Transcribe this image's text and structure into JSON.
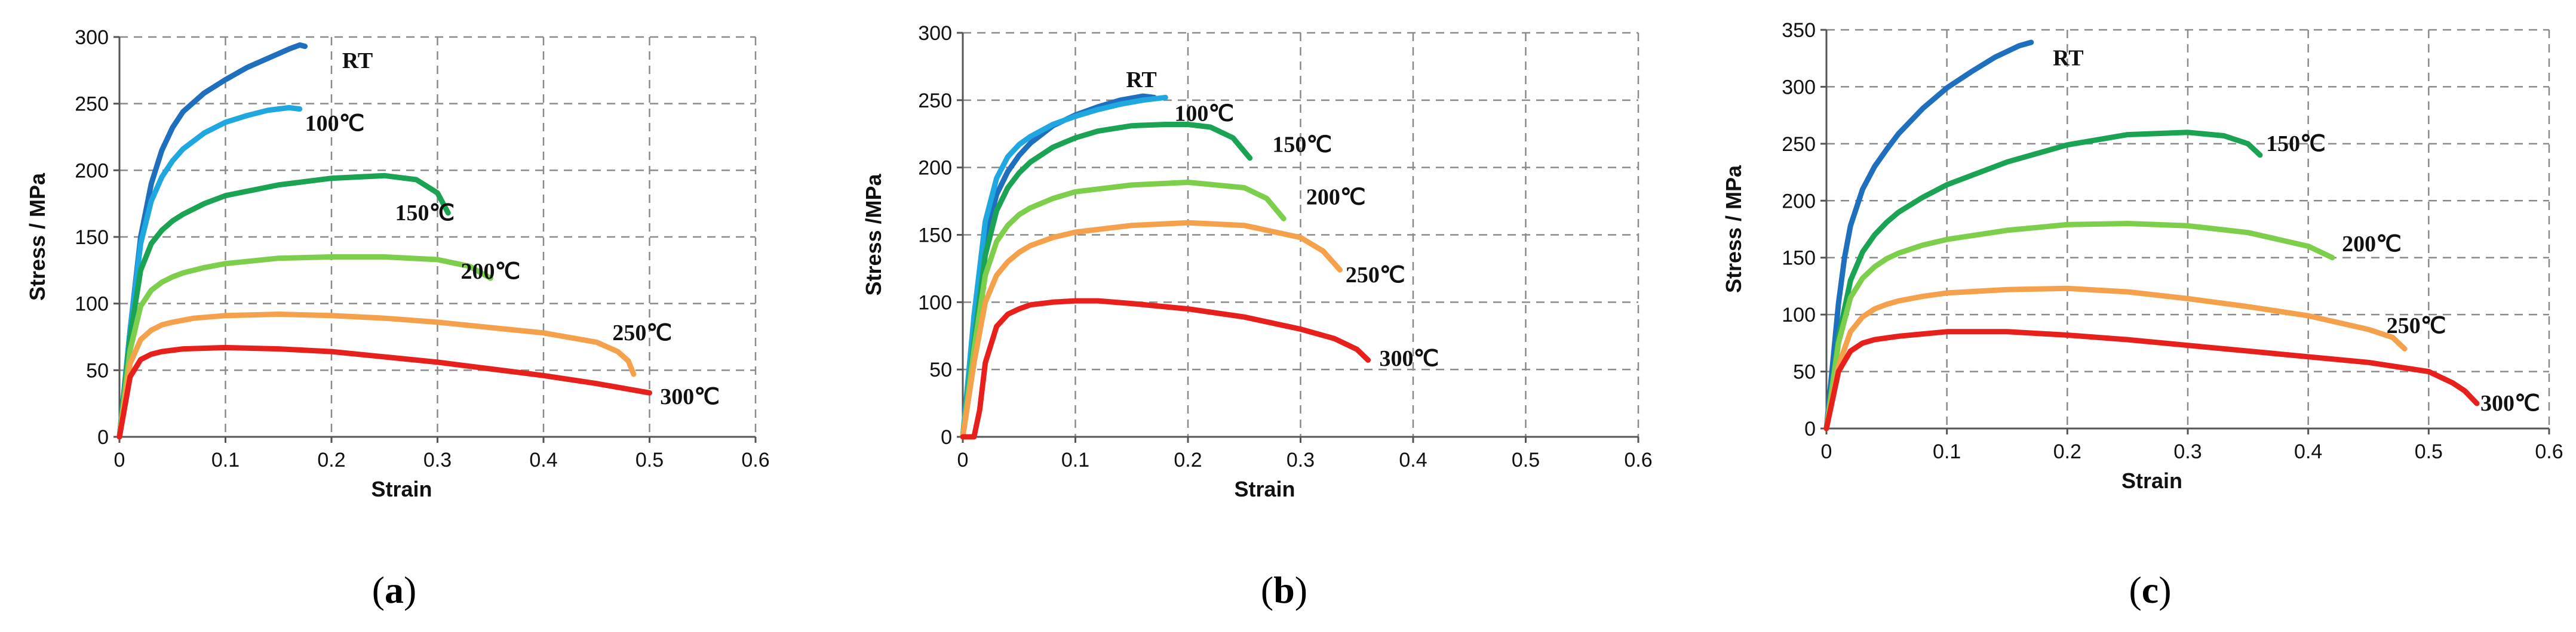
{
  "chart_data": [
    {
      "type": "line",
      "panel": "a",
      "caption": {
        "open": "(",
        "letter": "a",
        "close": ")"
      },
      "xlabel": "Strain",
      "ylabel": "Stress / MPa",
      "xlim": [
        0,
        0.6
      ],
      "ylim": [
        0,
        300
      ],
      "xticks": [
        0,
        0.1,
        0.2,
        0.3,
        0.4,
        0.5,
        0.6
      ],
      "yticks": [
        0,
        50,
        100,
        150,
        200,
        250,
        300
      ],
      "xtick_labels": [
        "0",
        "0.1",
        "0.2",
        "0.3",
        "0.4",
        "0.5",
        "0.6"
      ],
      "ytick_labels": [
        "0",
        "50",
        "100",
        "150",
        "200",
        "250",
        "300"
      ],
      "grid": true,
      "series": [
        {
          "name": "RT",
          "color": "#1f6fbf",
          "label_at": [
            0.21,
            282
          ],
          "x": [
            0,
            0.01,
            0.02,
            0.03,
            0.04,
            0.05,
            0.06,
            0.08,
            0.1,
            0.12,
            0.14,
            0.16,
            0.17,
            0.175
          ],
          "y": [
            0,
            80,
            150,
            190,
            215,
            232,
            244,
            258,
            268,
            277,
            284,
            291,
            294,
            293
          ]
        },
        {
          "name": "100℃",
          "color": "#1fa8e0",
          "label_at": [
            0.175,
            235
          ],
          "x": [
            0,
            0.01,
            0.02,
            0.03,
            0.04,
            0.05,
            0.06,
            0.08,
            0.1,
            0.12,
            0.14,
            0.16,
            0.17
          ],
          "y": [
            0,
            80,
            145,
            177,
            195,
            207,
            216,
            228,
            236,
            241,
            245,
            247,
            246
          ]
        },
        {
          "name": "150℃",
          "color": "#1aa352",
          "label_at": [
            0.26,
            168
          ],
          "x": [
            0,
            0.01,
            0.02,
            0.03,
            0.04,
            0.05,
            0.06,
            0.08,
            0.1,
            0.15,
            0.2,
            0.25,
            0.28,
            0.3,
            0.31
          ],
          "y": [
            0,
            75,
            125,
            145,
            155,
            162,
            167,
            175,
            181,
            189,
            194,
            196,
            193,
            183,
            168
          ]
        },
        {
          "name": "200℃",
          "color": "#7dce4b",
          "label_at": [
            0.322,
            124
          ],
          "x": [
            0,
            0.01,
            0.02,
            0.03,
            0.04,
            0.05,
            0.06,
            0.08,
            0.1,
            0.15,
            0.2,
            0.25,
            0.3,
            0.33,
            0.35
          ],
          "y": [
            0,
            65,
            98,
            110,
            116,
            120,
            123,
            127,
            130,
            134,
            135,
            135,
            133,
            128,
            119
          ]
        },
        {
          "name": "250℃",
          "color": "#f5a04b",
          "label_at": [
            0.465,
            78
          ],
          "x": [
            0,
            0.01,
            0.02,
            0.03,
            0.04,
            0.05,
            0.07,
            0.1,
            0.15,
            0.2,
            0.25,
            0.3,
            0.35,
            0.4,
            0.45,
            0.47,
            0.48,
            0.485
          ],
          "y": [
            0,
            55,
            73,
            80,
            84,
            86,
            89,
            91,
            92,
            91,
            89,
            86,
            82,
            78,
            71,
            64,
            57,
            47
          ]
        },
        {
          "name": "300℃",
          "color": "#e8201c",
          "label_at": [
            0.51,
            30
          ],
          "x": [
            0,
            0.01,
            0.02,
            0.03,
            0.04,
            0.06,
            0.1,
            0.15,
            0.2,
            0.25,
            0.3,
            0.35,
            0.4,
            0.45,
            0.5
          ],
          "y": [
            0,
            45,
            58,
            62,
            64,
            66,
            67,
            66,
            64,
            60,
            56,
            51,
            46,
            40,
            33
          ]
        }
      ]
    },
    {
      "type": "line",
      "panel": "b",
      "caption": {
        "open": "(",
        "letter": "b",
        "close": ")"
      },
      "xlabel": "Strain",
      "ylabel": "Stress /MPa",
      "xlim": [
        0,
        0.6
      ],
      "ylim": [
        0,
        300
      ],
      "xticks": [
        0,
        0.1,
        0.2,
        0.3,
        0.4,
        0.5,
        0.6
      ],
      "yticks": [
        0,
        50,
        100,
        150,
        200,
        250,
        300
      ],
      "xtick_labels": [
        "0",
        "0.1",
        "0.2",
        "0.3",
        "0.4",
        "0.5",
        "0.6"
      ],
      "ytick_labels": [
        "0",
        "50",
        "100",
        "150",
        "200",
        "250",
        "300"
      ],
      "grid": true,
      "series": [
        {
          "name": "RT",
          "color": "#1f6fbf",
          "label_at": [
            0.145,
            265
          ],
          "x": [
            0,
            0.01,
            0.02,
            0.03,
            0.04,
            0.05,
            0.06,
            0.08,
            0.1,
            0.12,
            0.14,
            0.16,
            0.17
          ],
          "y": [
            0,
            85,
            148,
            180,
            197,
            209,
            218,
            231,
            239,
            245,
            250,
            253,
            252
          ]
        },
        {
          "name": "100℃",
          "color": "#1fa8e0",
          "label_at": [
            0.188,
            240
          ],
          "x": [
            0,
            0.01,
            0.02,
            0.03,
            0.04,
            0.05,
            0.06,
            0.08,
            0.1,
            0.12,
            0.14,
            0.16,
            0.18
          ],
          "y": [
            0,
            90,
            160,
            192,
            208,
            217,
            223,
            232,
            238,
            243,
            247,
            250,
            252
          ]
        },
        {
          "name": "150℃",
          "color": "#1aa352",
          "label_at": [
            0.275,
            217
          ],
          "x": [
            0,
            0.01,
            0.02,
            0.03,
            0.04,
            0.05,
            0.06,
            0.08,
            0.1,
            0.12,
            0.15,
            0.18,
            0.2,
            0.22,
            0.24,
            0.255
          ],
          "y": [
            0,
            70,
            135,
            168,
            185,
            196,
            204,
            215,
            222,
            227,
            231,
            232,
            232,
            230,
            222,
            207
          ]
        },
        {
          "name": "200℃",
          "color": "#7dce4b",
          "label_at": [
            0.305,
            178
          ],
          "x": [
            0,
            0.01,
            0.02,
            0.03,
            0.04,
            0.05,
            0.06,
            0.08,
            0.1,
            0.15,
            0.2,
            0.25,
            0.27,
            0.285
          ],
          "y": [
            0,
            65,
            120,
            145,
            157,
            165,
            170,
            177,
            182,
            187,
            189,
            185,
            177,
            162
          ]
        },
        {
          "name": "250℃",
          "color": "#f5a04b",
          "label_at": [
            0.34,
            120
          ],
          "x": [
            0,
            0.01,
            0.02,
            0.03,
            0.04,
            0.05,
            0.06,
            0.08,
            0.1,
            0.15,
            0.2,
            0.25,
            0.3,
            0.32,
            0.335
          ],
          "y": [
            0,
            55,
            100,
            120,
            130,
            137,
            142,
            148,
            152,
            157,
            159,
            157,
            148,
            138,
            124
          ]
        },
        {
          "name": "300℃",
          "color": "#e8201c",
          "label_at": [
            0.37,
            58
          ],
          "x": [
            0,
            0.01,
            0.015,
            0.02,
            0.03,
            0.04,
            0.05,
            0.06,
            0.08,
            0.1,
            0.12,
            0.15,
            0.2,
            0.25,
            0.3,
            0.33,
            0.35,
            0.36
          ],
          "y": [
            0,
            0,
            20,
            55,
            82,
            91,
            95,
            98,
            100,
            101,
            101,
            99,
            95,
            89,
            80,
            73,
            65,
            57
          ]
        }
      ]
    },
    {
      "type": "line",
      "panel": "c",
      "caption": {
        "open": "(",
        "letter": "c",
        "close": ")"
      },
      "xlabel": "Strain",
      "ylabel": "Stress / MPa",
      "xlim": [
        0,
        0.6
      ],
      "ylim": [
        0,
        350
      ],
      "xticks": [
        0,
        0.1,
        0.2,
        0.3,
        0.4,
        0.5,
        0.6
      ],
      "yticks": [
        0,
        50,
        100,
        150,
        200,
        250,
        300,
        350
      ],
      "xtick_labels": [
        "0",
        "0.1",
        "0.2",
        "0.3",
        "0.4",
        "0.5",
        "0.6"
      ],
      "ytick_labels": [
        "0",
        "50",
        "100",
        "150",
        "200",
        "250",
        "300",
        "350"
      ],
      "grid": true,
      "series": [
        {
          "name": "RT",
          "color": "#1f6fbf",
          "label_at": [
            0.188,
            325
          ],
          "x": [
            0,
            0.01,
            0.015,
            0.02,
            0.03,
            0.04,
            0.05,
            0.06,
            0.08,
            0.1,
            0.12,
            0.14,
            0.16,
            0.17
          ],
          "y": [
            0,
            110,
            150,
            178,
            210,
            230,
            245,
            259,
            281,
            299,
            313,
            326,
            336,
            339
          ]
        },
        {
          "name": "150℃",
          "color": "#1aa352",
          "label_at": [
            0.365,
            250
          ],
          "x": [
            0,
            0.01,
            0.02,
            0.03,
            0.04,
            0.05,
            0.06,
            0.08,
            0.1,
            0.15,
            0.2,
            0.25,
            0.3,
            0.33,
            0.35,
            0.36
          ],
          "y": [
            0,
            80,
            130,
            155,
            170,
            181,
            190,
            203,
            214,
            234,
            249,
            258,
            260,
            257,
            250,
            240
          ]
        },
        {
          "name": "200℃",
          "color": "#7dce4b",
          "label_at": [
            0.428,
            162
          ],
          "x": [
            0,
            0.01,
            0.02,
            0.03,
            0.04,
            0.05,
            0.06,
            0.08,
            0.1,
            0.15,
            0.2,
            0.25,
            0.3,
            0.35,
            0.4,
            0.42
          ],
          "y": [
            0,
            75,
            115,
            132,
            142,
            149,
            154,
            161,
            166,
            174,
            179,
            180,
            178,
            172,
            160,
            150
          ]
        },
        {
          "name": "250℃",
          "color": "#f5a04b",
          "label_at": [
            0.465,
            90
          ],
          "x": [
            0,
            0.01,
            0.02,
            0.03,
            0.04,
            0.05,
            0.06,
            0.08,
            0.1,
            0.15,
            0.2,
            0.25,
            0.3,
            0.35,
            0.4,
            0.45,
            0.47,
            0.48
          ],
          "y": [
            0,
            55,
            85,
            98,
            105,
            109,
            112,
            116,
            119,
            122,
            123,
            120,
            114,
            107,
            99,
            87,
            80,
            70
          ]
        },
        {
          "name": "300℃",
          "color": "#e8201c",
          "label_at": [
            0.543,
            22
          ],
          "x": [
            0,
            0.01,
            0.02,
            0.03,
            0.04,
            0.06,
            0.1,
            0.15,
            0.2,
            0.25,
            0.3,
            0.35,
            0.4,
            0.45,
            0.5,
            0.52,
            0.53,
            0.54
          ],
          "y": [
            0,
            50,
            68,
            75,
            78,
            81,
            85,
            85,
            82,
            78,
            73,
            68,
            63,
            58,
            50,
            40,
            33,
            22
          ]
        }
      ]
    }
  ]
}
